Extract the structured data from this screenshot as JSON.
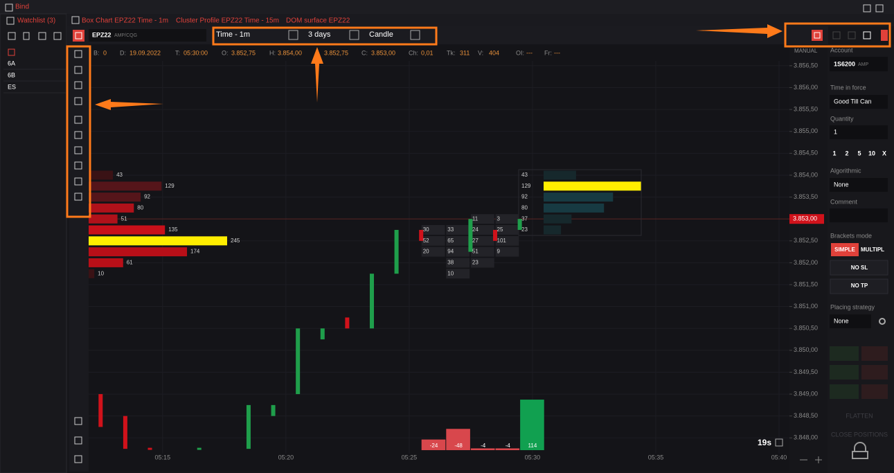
{
  "window": {
    "title": "Bind"
  },
  "watchlist": {
    "title": "Watchlist (3)",
    "symbols": [
      "6A",
      "6B",
      "ES"
    ]
  },
  "tabs": [
    "Box Chart EPZ22 Time - 1m",
    "Cluster Profile EPZ22 Time - 15m",
    "DOM surface EPZ22"
  ],
  "toolbar": {
    "symbol": "EPZ22",
    "feed": "AMP/CQG",
    "timeframe": "Time - 1m",
    "period": "3 days",
    "style": "Candle"
  },
  "info_bar": [
    {
      "label": "B:",
      "value": "0"
    },
    {
      "label": "D:",
      "value": "19.09.2022"
    },
    {
      "label": "T:",
      "value": "05:30:00"
    },
    {
      "label": "O:",
      "value": "3.852,75"
    },
    {
      "label": "H:",
      "value": "3.854,00"
    },
    {
      "value": "3.852,75"
    },
    {
      "label": "C:",
      "value": "3.853,00"
    },
    {
      "label": "Ch:",
      "value": "0,01"
    },
    {
      "label": "Tk:",
      "value": "311"
    },
    {
      "label": "V:",
      "value": "404"
    },
    {
      "label": "OI:",
      "value": "---"
    },
    {
      "label": "Fr:",
      "value": "---"
    }
  ],
  "chart_data": {
    "type": "candlestick",
    "price_scale_mode": "MANUAL",
    "grid": true,
    "xlim": [
      "05:12",
      "05:40"
    ],
    "xticks": [
      "05:15",
      "05:20",
      "05:25",
      "05:30",
      "05:35",
      "05:40"
    ],
    "ylim": [
      3847.625,
      3856.625
    ],
    "yticks": [
      {
        "value": 3848,
        "label": "3.848,00"
      },
      {
        "value": 3848.5,
        "label": "3.848,50"
      },
      {
        "value": 3849,
        "label": "3.849,00"
      },
      {
        "value": 3849.5,
        "label": "3.849,50"
      },
      {
        "value": 3850,
        "label": "3.850,00"
      },
      {
        "value": 3850.5,
        "label": "3.850,50"
      },
      {
        "value": 3851,
        "label": "3.851,00"
      },
      {
        "value": 3851.5,
        "label": "3.851,50"
      },
      {
        "value": 3852,
        "label": "3.852,00"
      },
      {
        "value": 3852.5,
        "label": "3.852,50"
      },
      {
        "value": 3853.5,
        "label": "3.853,50"
      },
      {
        "value": 3854,
        "label": "3.854,00"
      },
      {
        "value": 3854.5,
        "label": "3.854,50"
      },
      {
        "value": 3855,
        "label": "3.855,00"
      },
      {
        "value": 3855.5,
        "label": "3.855,50"
      },
      {
        "value": 3856,
        "label": "3.856,00"
      },
      {
        "value": 3856.5,
        "label": "3.856,50"
      }
    ],
    "last_price": {
      "value": 3853,
      "label": "3.853,00"
    },
    "up_color": "#1f9e4b",
    "down_color": "#d0121b",
    "candles": [
      {
        "time": "05:12",
        "open": 3849,
        "close": 3848.25
      },
      {
        "time": "05:13",
        "open": 3848.5,
        "close": 3847.75
      },
      {
        "time": "05:14",
        "open": 3847.75,
        "close": 3847.75,
        "color": "#d0121b"
      },
      {
        "time": "05:16",
        "open": 3847.75,
        "close": 3847.75
      },
      {
        "time": "05:18",
        "open": 3847.75,
        "close": 3848.75
      },
      {
        "time": "05:19",
        "open": 3848.5,
        "close": 3848.75
      },
      {
        "time": "05:20",
        "open": 3849,
        "close": 3850.5
      },
      {
        "time": "05:21",
        "open": 3850.25,
        "close": 3850.5
      },
      {
        "time": "05:22",
        "open": 3850.75,
        "close": 3850.5
      },
      {
        "time": "05:23",
        "open": 3850.5,
        "close": 3851.75
      },
      {
        "time": "05:24",
        "open": 3851.75,
        "close": 3852.75
      },
      {
        "time": "05:25",
        "open": 3852.75,
        "close": 3852.5
      },
      {
        "time": "05:27",
        "open": 3852.25,
        "close": 3853
      },
      {
        "time": "05:28",
        "open": 3852.75,
        "close": 3852.5
      },
      {
        "time": "05:29",
        "open": 3852.75,
        "close": 3853
      }
    ],
    "volume_profile": {
      "prices": [
        3854,
        3853.75,
        3853.5,
        3853.25,
        3853,
        3852.75,
        3852.5,
        3852.25,
        3852,
        3851.75
      ],
      "values": [
        43,
        129,
        92,
        80,
        51,
        135,
        245,
        174,
        61,
        10
      ],
      "colors": [
        "#3a1215",
        "#55151a",
        "#55151a",
        "#b0111a",
        "#b0111a",
        "#c8101a",
        "#ffee00",
        "#b80f18",
        "#b80f18",
        "#3a1215"
      ]
    },
    "clusters": [
      {
        "time": "05:25",
        "prices": [
          3852.75,
          3852.5,
          3852.25
        ],
        "values": [
          30,
          52,
          20
        ]
      },
      {
        "time": "05:26",
        "prices": [
          3852.75,
          3852.5,
          3852.25,
          3852,
          3851.75
        ],
        "values": [
          33,
          65,
          94,
          38,
          10
        ]
      },
      {
        "time": "05:27",
        "prices": [
          3853,
          3852.75,
          3852.5,
          3852.25,
          3852
        ],
        "values": [
          11,
          24,
          27,
          51,
          23
        ]
      },
      {
        "time": "05:28",
        "prices": [
          3853,
          3852.75,
          3852.5,
          3852.25
        ],
        "values": [
          3,
          25,
          101,
          9
        ]
      }
    ],
    "dom_profile": {
      "prices": [
        3854,
        3853.75,
        3853.5,
        3853.25,
        3853,
        3852.75
      ],
      "values": [
        43,
        129,
        92,
        80,
        37,
        23
      ],
      "colors": [
        "#16282c",
        "#ffee00",
        "#173a42",
        "#173a42",
        "#16282c",
        "#16282c"
      ]
    },
    "delta": {
      "times": [
        "05:25",
        "05:26",
        "05:27",
        "05:28",
        "05:29"
      ],
      "values": [
        -24,
        -48,
        -4,
        -4,
        114
      ],
      "positive_color": "#11a050",
      "negative_color": "#d8474c"
    },
    "timer": "19s"
  },
  "order_panel": {
    "account_label": "Account",
    "account": "1S6200",
    "account_broker": "AMP",
    "tif_label": "Time in force",
    "tif": "Good Till Can",
    "quantity_label": "Quantity",
    "quantity": "1",
    "quantity_presets": [
      "1",
      "2",
      "5",
      "10",
      "X"
    ],
    "algo_label": "Algorithmic",
    "algo": "None",
    "comment_label": "Comment",
    "brackets_label": "Brackets mode",
    "brackets_modes": [
      "SIMPLE",
      "MULTIPL"
    ],
    "no_sl": "NO SL",
    "no_tp": "NO TP",
    "strategy_label": "Placing strategy",
    "strategy": "None",
    "flatten": "FLATTEN",
    "close_positions": "CLOSE POSITIONS"
  }
}
